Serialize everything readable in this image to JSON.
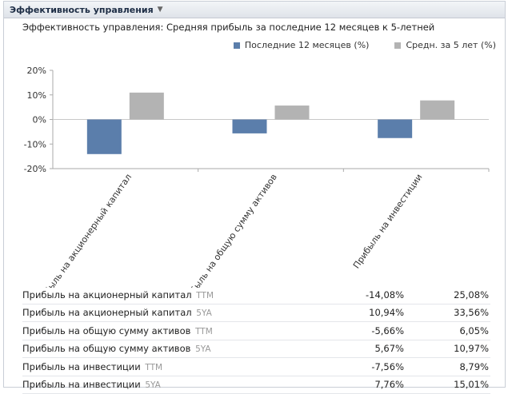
{
  "widget": {
    "title": "Эффективность управления",
    "title_chevron_icon": "chevron-down-icon"
  },
  "chart_data": {
    "type": "bar",
    "title": "Эффективность управления: Средняя прибыль за последние 12 месяцев к 5-летней",
    "categories": [
      "Прибыль на акционерный капитал",
      "Прибыль на общую сумму активов",
      "Прибыль на инвестиции"
    ],
    "series": [
      {
        "name": "Последние 12 месяцев (%)",
        "color": "#5b7eab",
        "values": [
          -14.08,
          -5.66,
          -7.56
        ]
      },
      {
        "name": "Средн. за 5 лет (%)",
        "color": "#b3b3b3",
        "values": [
          10.94,
          5.67,
          7.76
        ]
      }
    ],
    "yticks": [
      "20%",
      "10%",
      "0%",
      "-10%",
      "-20%"
    ],
    "ylim": [
      -20,
      20
    ],
    "grid": false,
    "legend_position": "top-right"
  },
  "table": {
    "rows": [
      {
        "label": "Прибыль на акционерный капитал",
        "tag": "TTM",
        "v1": "-14,08%",
        "v2": "25,08%"
      },
      {
        "label": "Прибыль на акционерный капитал",
        "tag": "5YA",
        "v1": "10,94%",
        "v2": "33,56%"
      },
      {
        "label": "Прибыль на общую сумму активов",
        "tag": "TTM",
        "v1": "-5,66%",
        "v2": "6,05%"
      },
      {
        "label": "Прибыль на общую сумму активов",
        "tag": "5YA",
        "v1": "5,67%",
        "v2": "10,97%"
      },
      {
        "label": "Прибыль на инвестиции",
        "tag": "TTM",
        "v1": "-7,56%",
        "v2": "8,79%"
      },
      {
        "label": "Прибыль на инвестиции",
        "tag": "5YA",
        "v1": "7,76%",
        "v2": "15,01%"
      }
    ]
  }
}
